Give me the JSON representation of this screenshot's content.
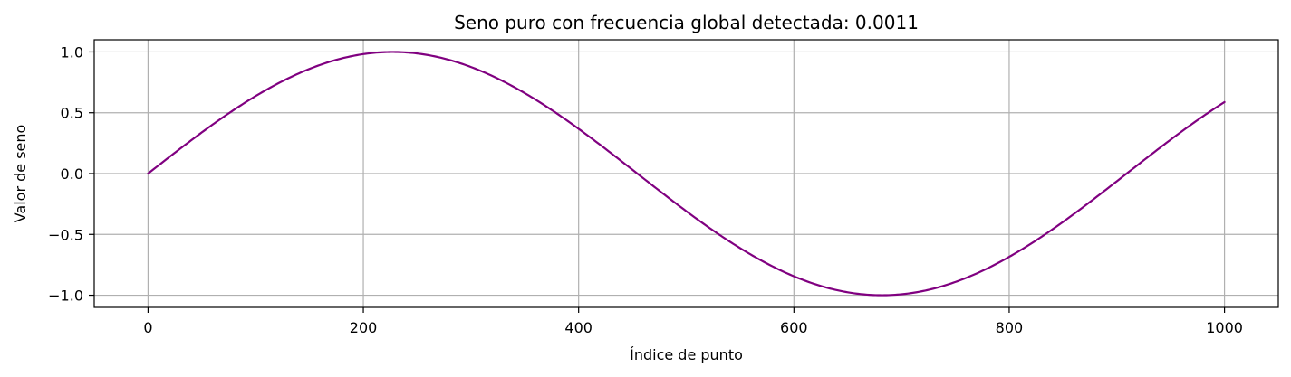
{
  "chart_data": {
    "type": "line",
    "title": "Seno puro con frecuencia global detectada: 0.0011",
    "xlabel": "Índice de punto",
    "ylabel": "Valor de seno",
    "xlim": [
      -50,
      1050
    ],
    "ylim": [
      -1.1,
      1.1
    ],
    "xticks": [
      0,
      200,
      400,
      600,
      800,
      1000
    ],
    "xtick_labels": [
      "0",
      "200",
      "400",
      "600",
      "800",
      "1000"
    ],
    "yticks": [
      -1.0,
      -0.5,
      0.0,
      0.5,
      1.0
    ],
    "ytick_labels": [
      "−1.0",
      "−0.5",
      "0.0",
      "0.5",
      "1.0"
    ],
    "grid": true,
    "series": [
      {
        "frequency": 0.0011,
        "x_start": 0,
        "x_end": 1000,
        "color": "#800080",
        "points": [
          [
            0,
            0.0
          ],
          [
            50,
            0.34
          ],
          [
            100,
            0.64
          ],
          [
            150,
            0.87
          ],
          [
            200,
            0.98
          ],
          [
            227,
            1.0
          ],
          [
            250,
            0.99
          ],
          [
            300,
            0.89
          ],
          [
            350,
            0.67
          ],
          [
            400,
            0.37
          ],
          [
            450,
            0.03
          ],
          [
            500,
            -0.31
          ],
          [
            550,
            -0.62
          ],
          [
            600,
            -0.85
          ],
          [
            650,
            -0.98
          ],
          [
            682,
            -1.0
          ],
          [
            700,
            -0.99
          ],
          [
            750,
            -0.9
          ],
          [
            800,
            -0.69
          ],
          [
            850,
            -0.4
          ],
          [
            900,
            -0.06
          ],
          [
            950,
            0.29
          ],
          [
            1000,
            0.6
          ]
        ]
      }
    ],
    "colors": {
      "axes": "#000000",
      "grid": "#b0b0b0"
    }
  }
}
